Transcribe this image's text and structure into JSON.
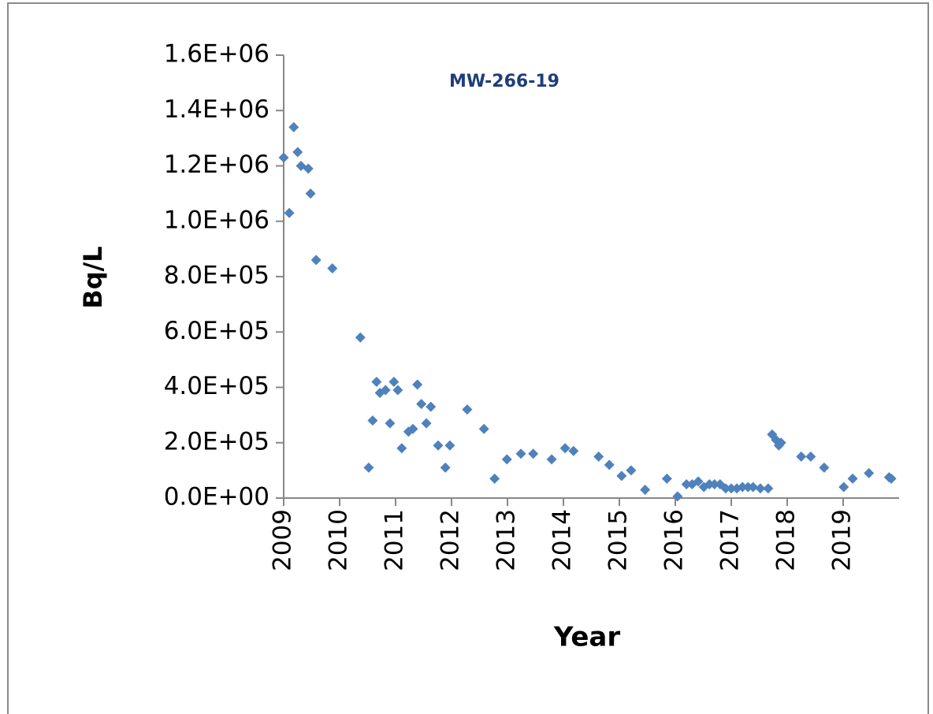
{
  "chart_data": {
    "type": "scatter",
    "title": "MW-266-19",
    "ylabel": "Bq/L",
    "xlabel": "Year",
    "color": "#4f81bd",
    "x": [
      2009.0,
      2009.1,
      2009.18,
      2009.25,
      2009.31,
      2009.44,
      2009.48,
      2009.58,
      2009.87,
      2010.37,
      2010.52,
      2010.59,
      2010.66,
      2010.72,
      2010.82,
      2010.9,
      2010.97,
      2011.04,
      2011.11,
      2011.23,
      2011.31,
      2011.39,
      2011.46,
      2011.55,
      2011.63,
      2011.76,
      2011.89,
      2011.97,
      2012.28,
      2012.58,
      2012.77,
      2012.99,
      2013.24,
      2013.46,
      2013.79,
      2014.03,
      2014.18,
      2014.63,
      2014.82,
      2015.04,
      2015.21,
      2015.46,
      2015.85,
      2016.04,
      2016.2,
      2016.3,
      2016.41,
      2016.51,
      2016.61,
      2016.7,
      2016.8,
      2016.9,
      2017.0,
      2017.1,
      2017.2,
      2017.3,
      2017.39,
      2017.52,
      2017.66,
      2017.73,
      2017.8,
      2017.85,
      2017.89,
      2018.25,
      2018.42,
      2018.66,
      2019.01,
      2019.17,
      2019.46,
      2019.82,
      2019.86
    ],
    "values": [
      1230000,
      1030000,
      1340000,
      1250000,
      1200000,
      1190000,
      1100000,
      860000,
      830000,
      580000,
      110000,
      280000,
      420000,
      380000,
      390000,
      270000,
      420000,
      390000,
      180000,
      240000,
      250000,
      410000,
      340000,
      270000,
      330000,
      190000,
      110000,
      190000,
      320000,
      250000,
      70000,
      140000,
      160000,
      160000,
      140000,
      180000,
      170000,
      150000,
      120000,
      80000,
      100000,
      30000,
      70000,
      6000,
      50000,
      50000,
      60000,
      40000,
      50000,
      50000,
      50000,
      35000,
      35000,
      35000,
      40000,
      40000,
      40000,
      35000,
      35000,
      230000,
      210000,
      190000,
      200000,
      150000,
      150000,
      110000,
      40000,
      70000,
      90000,
      75000,
      70000
    ],
    "xlim": [
      2009,
      2020
    ],
    "xticks": [
      2009,
      2010,
      2011,
      2012,
      2013,
      2014,
      2015,
      2016,
      2017,
      2018,
      2019
    ],
    "ylim": [
      0,
      1600000
    ],
    "yticks": [
      {
        "value": 0,
        "label": "0.0E+00"
      },
      {
        "value": 200000,
        "label": "2.0E+05"
      },
      {
        "value": 400000,
        "label": "4.0E+05"
      },
      {
        "value": 600000,
        "label": "6.0E+05"
      },
      {
        "value": 800000,
        "label": "8.0E+05"
      },
      {
        "value": 1000000,
        "label": "1.0E+06"
      },
      {
        "value": 1200000,
        "label": "1.2E+06"
      },
      {
        "value": 1400000,
        "label": "1.4E+06"
      },
      {
        "value": 1600000,
        "label": "1.6E+06"
      }
    ]
  }
}
